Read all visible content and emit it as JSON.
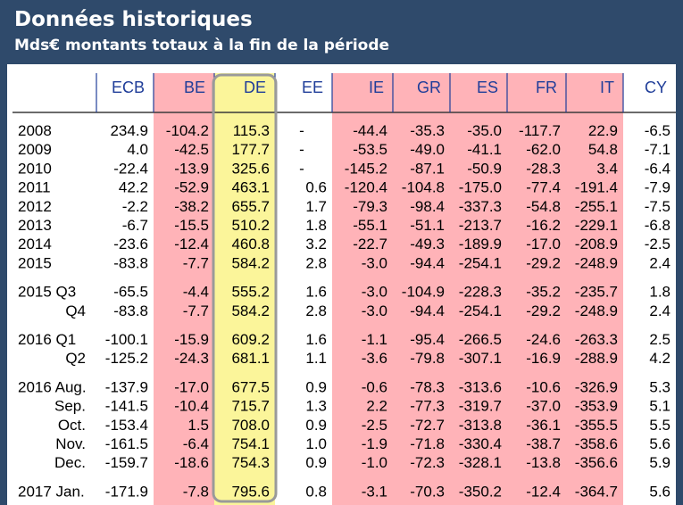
{
  "header": {
    "title": "Données historiques",
    "subtitle": "Mds€ montants totaux à la fin de la période"
  },
  "colors": {
    "header_bg": "#2f4a6b",
    "negative_balance_columns": "#ffb3b8",
    "highlight_column": "#fbf59a",
    "header_text": "#1f3d99"
  },
  "chart_data": {
    "type": "table",
    "title": "Données historiques",
    "subtitle": "Mds€ montants totaux à la fin de la période",
    "columns": [
      "ECB",
      "BE",
      "DE",
      "EE",
      "IE",
      "GR",
      "ES",
      "FR",
      "IT",
      "CY"
    ],
    "shaded_columns": [
      "BE",
      "IE",
      "GR",
      "ES",
      "FR",
      "IT"
    ],
    "highlighted_column": "DE",
    "row_groups": [
      {
        "rows": [
          {
            "label": "2008",
            "values": [
              "234.9",
              "-104.2",
              "115.3",
              "-",
              "-44.4",
              "-35.3",
              "-35.0",
              "-117.7",
              "22.9",
              "-6.5"
            ]
          },
          {
            "label": "2009",
            "values": [
              "4.0",
              "-42.5",
              "177.7",
              "-",
              "-53.5",
              "-49.0",
              "-41.1",
              "-62.0",
              "54.8",
              "-7.1"
            ]
          },
          {
            "label": "2010",
            "values": [
              "-22.4",
              "-13.9",
              "325.6",
              "-",
              "-145.2",
              "-87.1",
              "-50.9",
              "-28.3",
              "3.4",
              "-6.4"
            ]
          },
          {
            "label": "2011",
            "values": [
              "42.2",
              "-52.9",
              "463.1",
              "0.6",
              "-120.4",
              "-104.8",
              "-175.0",
              "-77.4",
              "-191.4",
              "-7.9"
            ]
          },
          {
            "label": "2012",
            "values": [
              "-2.2",
              "-38.2",
              "655.7",
              "1.7",
              "-79.3",
              "-98.4",
              "-337.3",
              "-54.8",
              "-255.1",
              "-7.5"
            ]
          },
          {
            "label": "2013",
            "values": [
              "-6.7",
              "-15.5",
              "510.2",
              "1.8",
              "-55.1",
              "-51.1",
              "-213.7",
              "-16.2",
              "-229.1",
              "-6.8"
            ]
          },
          {
            "label": "2014",
            "values": [
              "-23.6",
              "-12.4",
              "460.8",
              "3.2",
              "-22.7",
              "-49.3",
              "-189.9",
              "-17.0",
              "-208.9",
              "-2.5"
            ]
          },
          {
            "label": "2015",
            "values": [
              "-83.8",
              "-7.7",
              "584.2",
              "2.8",
              "-3.0",
              "-94.4",
              "-254.1",
              "-29.2",
              "-248.9",
              "2.4"
            ]
          }
        ]
      },
      {
        "rows": [
          {
            "label": "2015 Q3",
            "values": [
              "-65.5",
              "-4.4",
              "555.2",
              "1.6",
              "-3.0",
              "-104.9",
              "-228.3",
              "-35.2",
              "-235.7",
              "1.8"
            ]
          },
          {
            "label": "Q4",
            "values": [
              "-83.8",
              "-7.7",
              "584.2",
              "2.8",
              "-3.0",
              "-94.4",
              "-254.1",
              "-29.2",
              "-248.9",
              "2.4"
            ]
          }
        ]
      },
      {
        "rows": [
          {
            "label": "2016 Q1",
            "values": [
              "-100.1",
              "-15.9",
              "609.2",
              "1.6",
              "-1.1",
              "-95.4",
              "-266.5",
              "-24.6",
              "-263.3",
              "2.5"
            ]
          },
          {
            "label": "Q2",
            "values": [
              "-125.2",
              "-24.3",
              "681.1",
              "1.1",
              "-3.6",
              "-79.8",
              "-307.1",
              "-16.9",
              "-288.9",
              "4.2"
            ]
          }
        ]
      },
      {
        "rows": [
          {
            "label": "2016 Aug.",
            "values": [
              "-137.9",
              "-17.0",
              "677.5",
              "0.9",
              "-0.6",
              "-78.3",
              "-313.6",
              "-10.6",
              "-326.9",
              "5.3"
            ]
          },
          {
            "label": "Sep.",
            "values": [
              "-141.5",
              "-10.4",
              "715.7",
              "1.3",
              "2.2",
              "-77.3",
              "-319.7",
              "-37.0",
              "-353.9",
              "5.1"
            ]
          },
          {
            "label": "Oct.",
            "values": [
              "-153.4",
              "1.5",
              "708.0",
              "0.9",
              "-2.5",
              "-72.7",
              "-313.8",
              "-36.1",
              "-355.5",
              "5.5"
            ]
          },
          {
            "label": "Nov.",
            "values": [
              "-161.5",
              "-6.4",
              "754.1",
              "1.0",
              "-1.9",
              "-71.8",
              "-330.4",
              "-38.7",
              "-358.6",
              "5.6"
            ]
          },
          {
            "label": "Dec.",
            "values": [
              "-159.7",
              "-18.6",
              "754.3",
              "0.9",
              "-1.0",
              "-72.3",
              "-328.1",
              "-13.8",
              "-356.6",
              "5.9"
            ]
          }
        ]
      },
      {
        "rows": [
          {
            "label": "2017 Jan.",
            "values": [
              "-171.9",
              "-7.8",
              "795.6",
              "0.8",
              "-3.1",
              "-70.3",
              "-350.2",
              "-12.4",
              "-364.7",
              "5.6"
            ]
          }
        ]
      }
    ]
  }
}
